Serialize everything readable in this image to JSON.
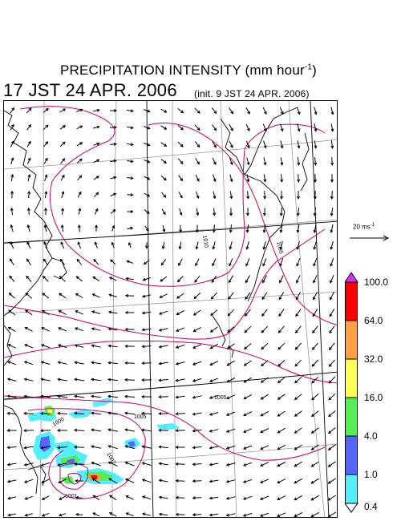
{
  "header": {
    "title_main": "PRECIPITATION INTENSITY (mm hour",
    "title_exp": "-1",
    "title_close": ")",
    "valid_time": "17 JST 24 APR. 2006",
    "init_time": "(init. 9 JST 24 APR. 2006)"
  },
  "vector_scale": {
    "label_main": "20 ms",
    "label_exp": "-1"
  },
  "colorbar": {
    "levels": [
      "100.0",
      "64.0",
      "32.0",
      "16.0",
      "4.0",
      "1.0",
      "0.4"
    ],
    "colors": {
      "top": "#cc33ff",
      "s1": "#ff0000",
      "s2": "#ffa040",
      "s3": "#ffff55",
      "s4": "#55ee55",
      "s5": "#5566ff",
      "s6": "#55eeff",
      "bottom": "#ffffff"
    }
  },
  "map": {
    "isobar_color": "#cc0066",
    "contour_labels": [
      "1010",
      "1005",
      "1005",
      "1005",
      "1000",
      "1002",
      "1001"
    ],
    "colors": {
      "land": "#000000",
      "grid": "#999999",
      "arrow": "#000000"
    }
  }
}
